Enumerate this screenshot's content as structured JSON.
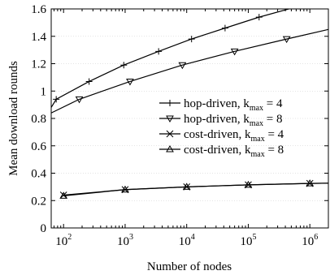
{
  "chart_data": {
    "type": "line",
    "xlabel": "Number of nodes",
    "ylabel": "Mean download rounds",
    "xscale": "log",
    "xlim": [
      63,
      2000000
    ],
    "ylim": [
      0,
      1.6
    ],
    "y_ticks": [
      "0",
      "0.2",
      "0.4",
      "0.6",
      "0.8",
      "1",
      "1.2",
      "1.4",
      "1.6"
    ],
    "x_ticks": [
      {
        "base": "10",
        "exp": "2"
      },
      {
        "base": "10",
        "exp": "3"
      },
      {
        "base": "10",
        "exp": "4"
      },
      {
        "base": "10",
        "exp": "5"
      },
      {
        "base": "10",
        "exp": "6"
      }
    ],
    "legend_position": "center-right",
    "series": [
      {
        "name": "hop-driven, k_max = 4",
        "legend": {
          "text": "hop-driven, k",
          "sub": "max",
          "tail": " = 4"
        },
        "marker": "plus",
        "x": [
          63,
          76,
          260,
          950,
          3500,
          12000,
          42000,
          150000,
          550000,
          2000000
        ],
        "y": [
          0.88,
          0.94,
          1.07,
          1.19,
          1.29,
          1.38,
          1.46,
          1.54,
          1.61,
          1.68
        ]
      },
      {
        "name": "hop-driven, k_max = 8",
        "legend": {
          "text": "hop-driven, k",
          "sub": "max",
          "tail": " = 8"
        },
        "marker": "triangle-down",
        "x": [
          63,
          180,
          1200,
          8500,
          60000,
          420000,
          2000000
        ],
        "y": [
          0.84,
          0.94,
          1.07,
          1.19,
          1.29,
          1.38,
          1.45
        ]
      },
      {
        "name": "cost-driven, k_max = 4",
        "legend": {
          "text": "cost-driven, k",
          "sub": "max",
          "tail": " = 4"
        },
        "marker": "x",
        "x": [
          100,
          1000,
          10000,
          100000,
          1000000,
          2000000
        ],
        "y": [
          0.24,
          0.28,
          0.3,
          0.315,
          0.325,
          0.327
        ]
      },
      {
        "name": "cost-driven, k_max = 8",
        "legend": {
          "text": "cost-driven, k",
          "sub": "max",
          "tail": " = 8"
        },
        "marker": "triangle-up",
        "x": [
          100,
          1000,
          10000,
          100000,
          1000000,
          2000000
        ],
        "y": [
          0.235,
          0.28,
          0.3,
          0.315,
          0.325,
          0.327
        ]
      }
    ]
  }
}
